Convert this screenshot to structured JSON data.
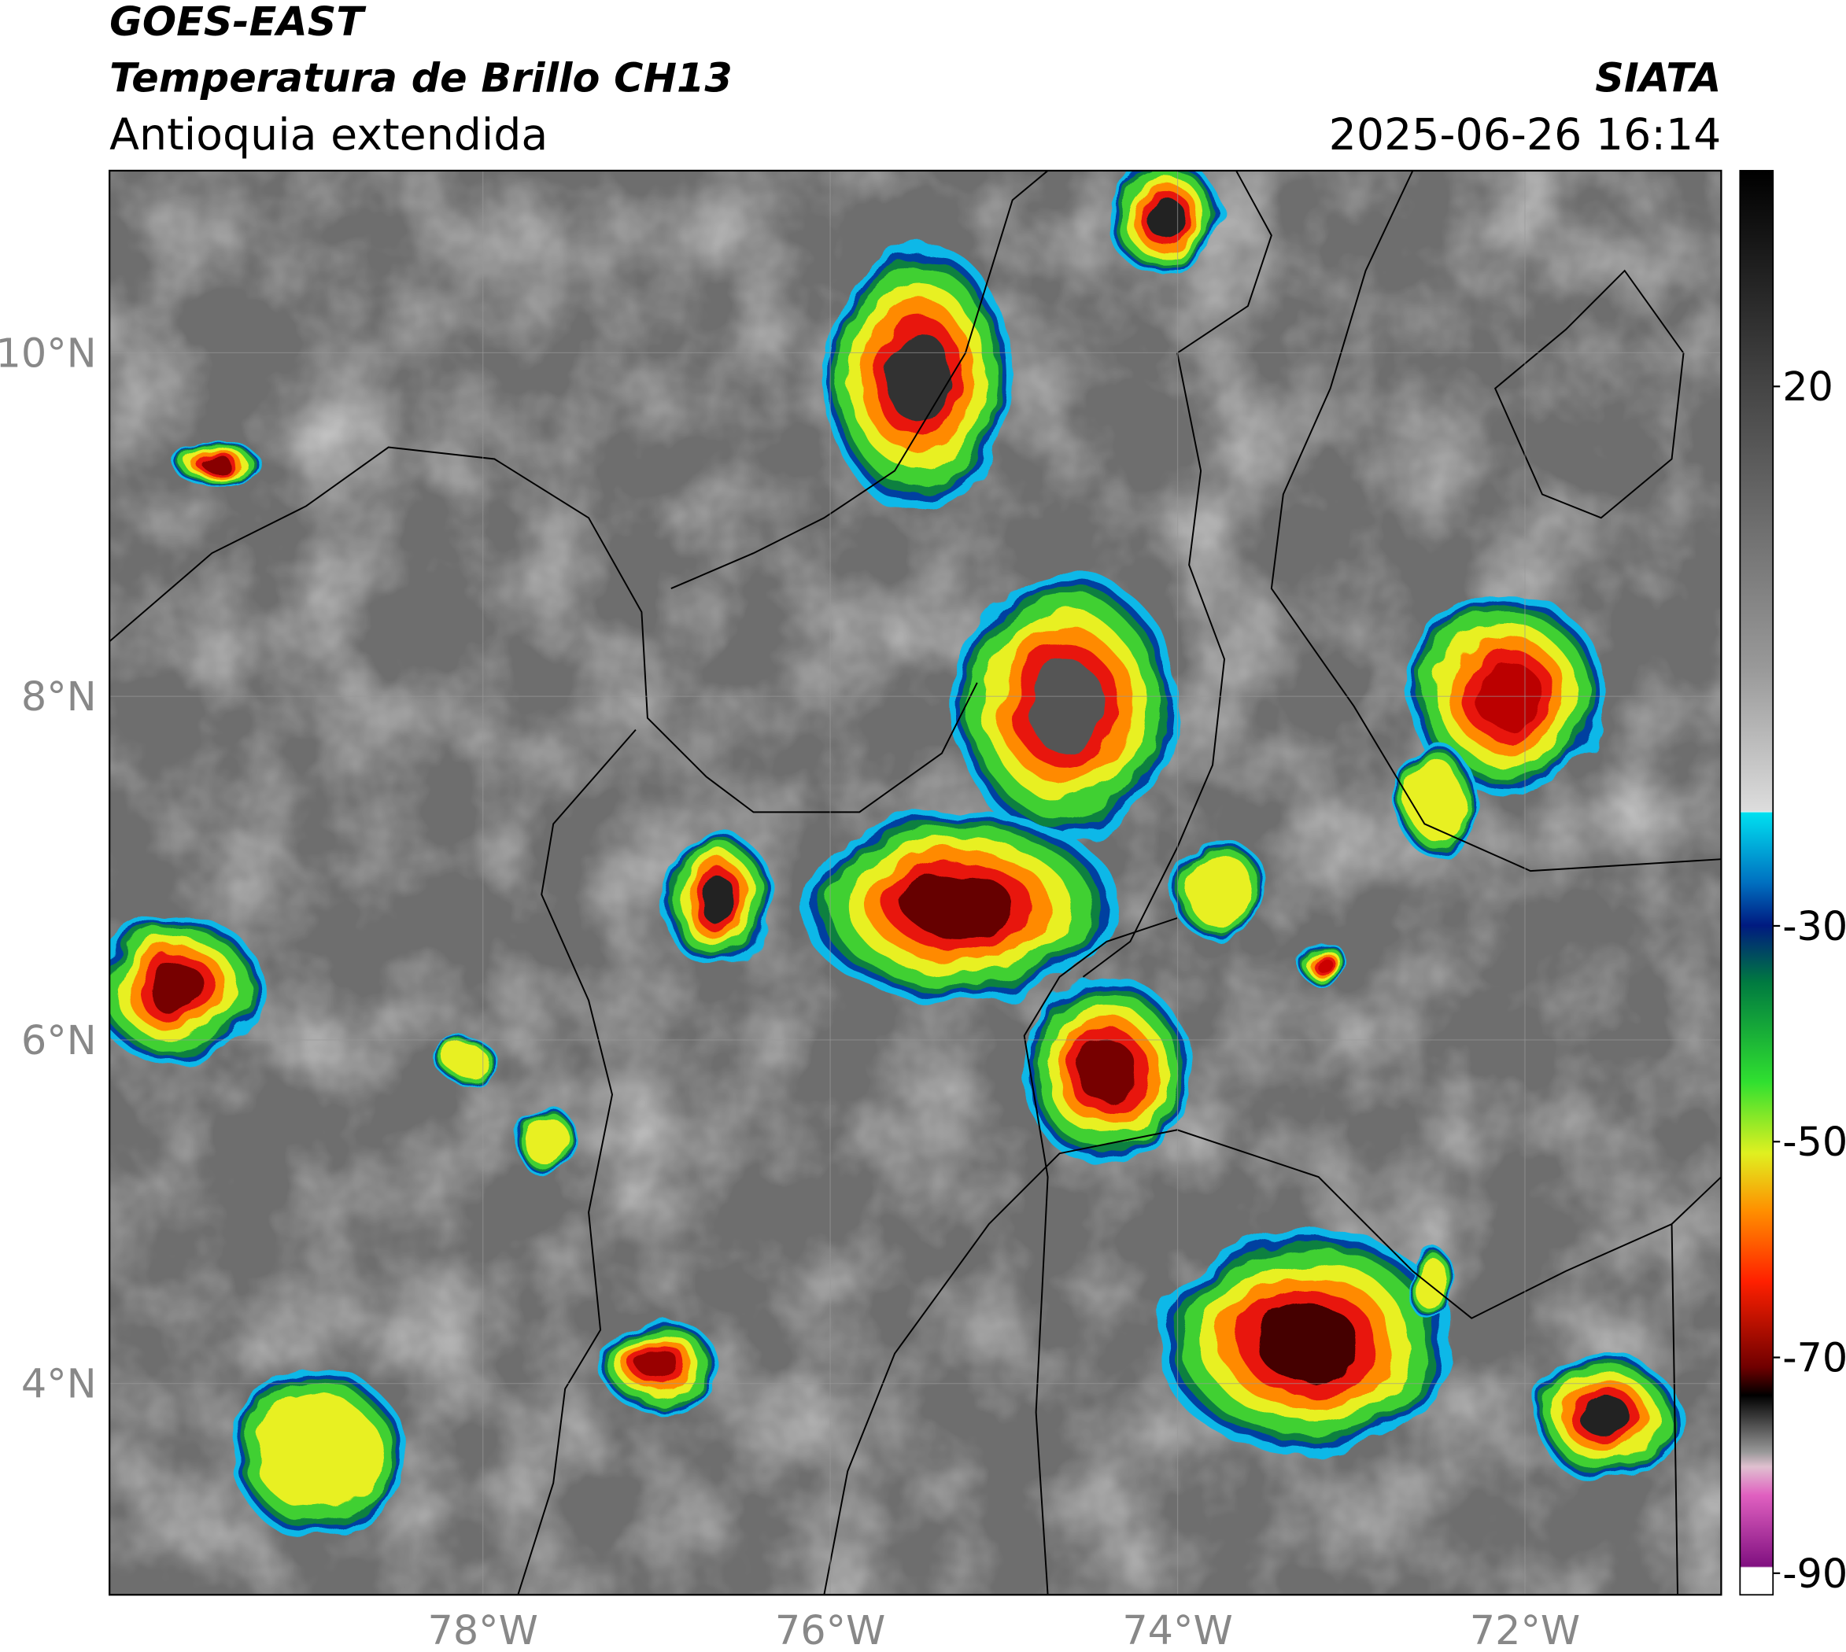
{
  "header": {
    "title": "GOES-EAST",
    "subtitle": "Temperatura de Brillo CH13",
    "region": "Antioquia extendida",
    "source": "SIATA",
    "timestamp": "2025-06-26 16:14"
  },
  "map": {
    "lon_range": [
      -80.15,
      -70.87
    ],
    "lat_range": [
      2.77,
      11.06
    ],
    "lat_ticks": [
      {
        "value": 10,
        "label": "10°N"
      },
      {
        "value": 8,
        "label": "8°N"
      },
      {
        "value": 6,
        "label": "6°N"
      },
      {
        "value": 4,
        "label": "4°N"
      }
    ],
    "lon_ticks": [
      {
        "value": -78,
        "label": "78°W"
      },
      {
        "value": -76,
        "label": "76°W"
      },
      {
        "value": -74,
        "label": "74°W"
      },
      {
        "value": -72,
        "label": "72°W"
      }
    ]
  },
  "colorbar": {
    "range": [
      -92,
      40
    ],
    "ticks": [
      20,
      -30,
      -50,
      -70,
      -90
    ]
  }
}
